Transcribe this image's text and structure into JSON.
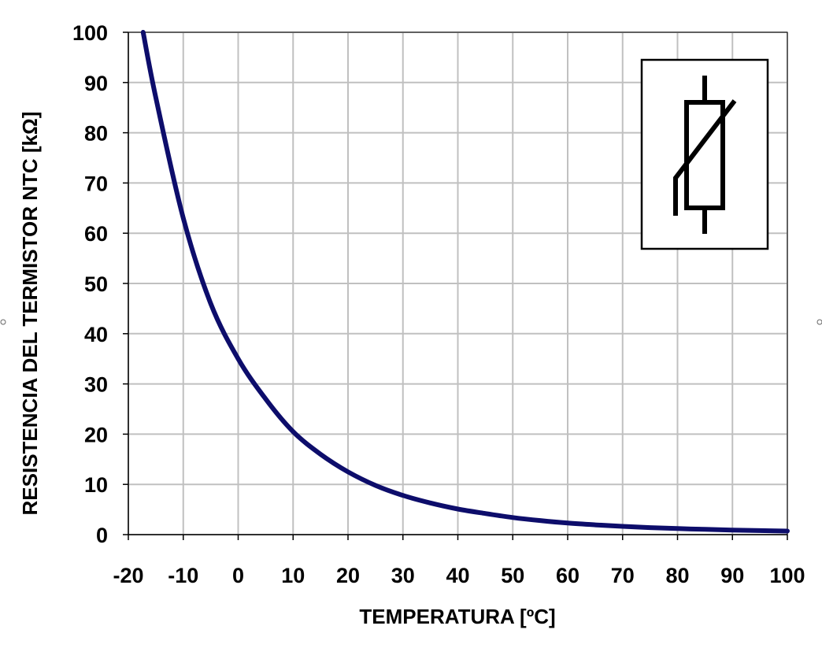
{
  "chart_data": {
    "type": "line",
    "title": "",
    "xlabel": "TEMPERATURA [ºC]",
    "ylabel": "RESISTENCIA DEL TERMISTOR NTC [kΩ]",
    "xlim": [
      -20,
      100
    ],
    "ylim": [
      0,
      100
    ],
    "xticks": [
      -20,
      -10,
      0,
      10,
      20,
      30,
      40,
      50,
      60,
      70,
      80,
      90,
      100
    ],
    "yticks": [
      0,
      10,
      20,
      30,
      40,
      50,
      60,
      70,
      80,
      90,
      100
    ],
    "xtick_labels": [
      "-20",
      "-10",
      "0",
      "10",
      "20",
      "30",
      "40",
      "50",
      "60",
      "70",
      "80",
      "90",
      "100"
    ],
    "ytick_labels": [
      "0",
      "10",
      "20",
      "30",
      "40",
      "50",
      "60",
      "70",
      "80",
      "90",
      "100"
    ],
    "grid": true,
    "series": [
      {
        "color": "#0d0d6b",
        "x": [
          -17.3,
          -15,
          -10,
          -5,
          0,
          5,
          10,
          15,
          20,
          25,
          30,
          35,
          40,
          45,
          50,
          55,
          60,
          65,
          70,
          75,
          80,
          85,
          90,
          95,
          100
        ],
        "y": [
          100,
          87,
          63,
          46,
          35,
          27,
          20.5,
          16,
          12.5,
          9.8,
          7.8,
          6.3,
          5.1,
          4.2,
          3.4,
          2.8,
          2.3,
          1.95,
          1.65,
          1.4,
          1.2,
          1.05,
          0.9,
          0.8,
          0.7
        ]
      }
    ],
    "inset": {
      "icon": "ntc-thermistor-symbol-icon"
    }
  }
}
